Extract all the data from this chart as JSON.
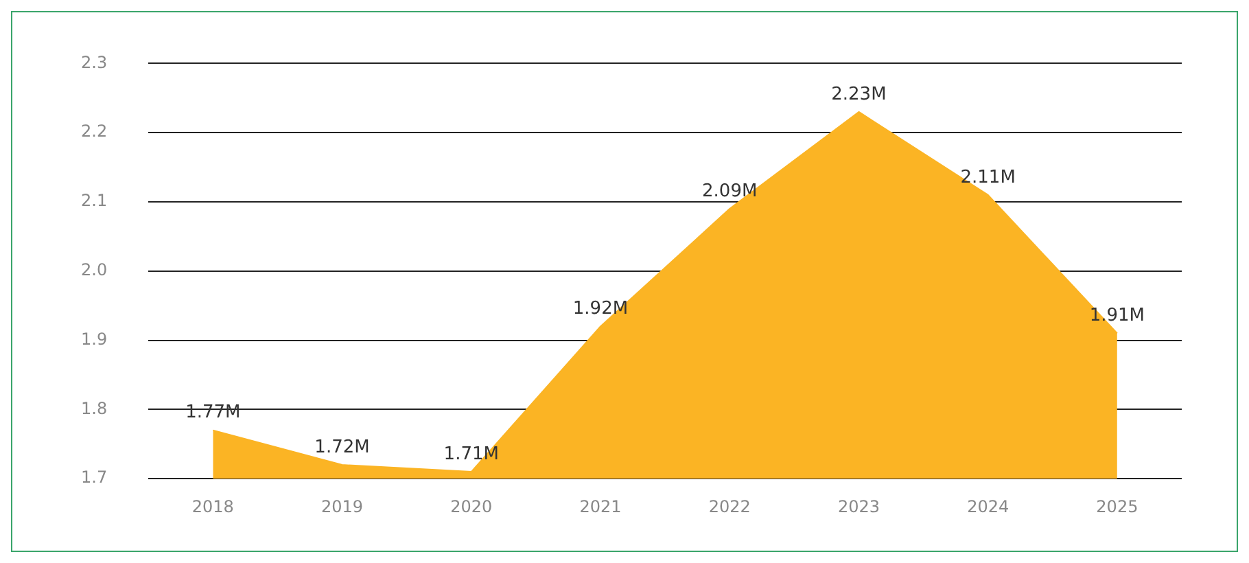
{
  "chart_data": {
    "type": "area",
    "categories": [
      "2018",
      "2019",
      "2020",
      "2021",
      "2022",
      "2023",
      "2024",
      "2025"
    ],
    "series": [
      {
        "color": "#fbb424",
        "values": [
          1.77,
          1.72,
          1.71,
          1.92,
          2.09,
          2.23,
          2.11,
          1.91
        ],
        "value_labels": [
          "1.77M",
          "1.72M",
          "1.71M",
          "1.92M",
          "2.09M",
          "2.23M",
          "2.11M",
          "1.91M"
        ]
      }
    ],
    "ylim": [
      1.7,
      2.3
    ],
    "yticks": [
      {
        "value": 1.7,
        "label": "1.7"
      },
      {
        "value": 1.8,
        "label": "1.8"
      },
      {
        "value": 1.9,
        "label": "1.9"
      },
      {
        "value": 2.0,
        "label": "2.0"
      },
      {
        "value": 2.1,
        "label": "2.1"
      },
      {
        "value": 2.2,
        "label": "2.2"
      },
      {
        "value": 2.3,
        "label": "2.3"
      }
    ],
    "grid": "y",
    "legend": false,
    "marker": "none"
  }
}
